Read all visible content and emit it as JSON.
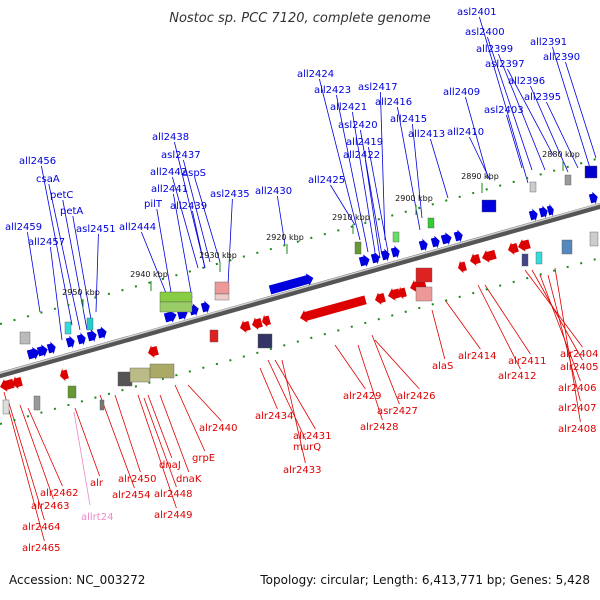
{
  "title": "Nostoc sp. PCC 7120, complete genome",
  "footer": {
    "accession": "Accession: NC_003272",
    "topology": "Topology: circular; Length: 6,413,771 bp; Genes: 5,428"
  },
  "colors": {
    "top_strand": "#0000dd",
    "bottom_strand": "#dd0000",
    "rna": "#ee88cc",
    "backbone": "#777777",
    "tick": "#1a8a1a"
  },
  "ticks": [
    "2880 kbp",
    "2890 kbp",
    "2900 kbp",
    "2910 kbp",
    "2920 kbp",
    "2930 kbp",
    "2940 kbp",
    "2950 kbp"
  ],
  "genes_top": [
    "asl2401",
    "asl2400",
    "all2399",
    "asl2397",
    "all2396",
    "all2395",
    "all2391",
    "all2390",
    "all2409",
    "asl2403",
    "all2410",
    "all2424",
    "all2423",
    "asl2417",
    "all2421",
    "all2416",
    "asl2420",
    "all2415",
    "all2419",
    "all2422",
    "all2413",
    "all2425",
    "all2430",
    "all2438",
    "asl2437",
    "all2442",
    "aspS",
    "all2441",
    "pilT",
    "all2439",
    "asl2435",
    "all2456",
    "csaA",
    "petC",
    "petA",
    "all2459",
    "asl2451",
    "all2457",
    "all2444"
  ],
  "genes_bottom": [
    "alr2404",
    "alr2405",
    "alr2406",
    "alr2407",
    "alr2408",
    "alr2411",
    "alr2412",
    "alr2414",
    "alaS",
    "alr2426",
    "asr2427",
    "alr2428",
    "alr2429",
    "murQ",
    "alr2431",
    "alr2433",
    "alr2434",
    "alr2440",
    "grpE",
    "dnaK",
    "dnaJ",
    "alr2448",
    "alr2449",
    "alr2450",
    "alr2454",
    "alr",
    "alr2462",
    "alr2463",
    "alr2464",
    "alr2465"
  ],
  "genes_rna": [
    "allrt24"
  ]
}
